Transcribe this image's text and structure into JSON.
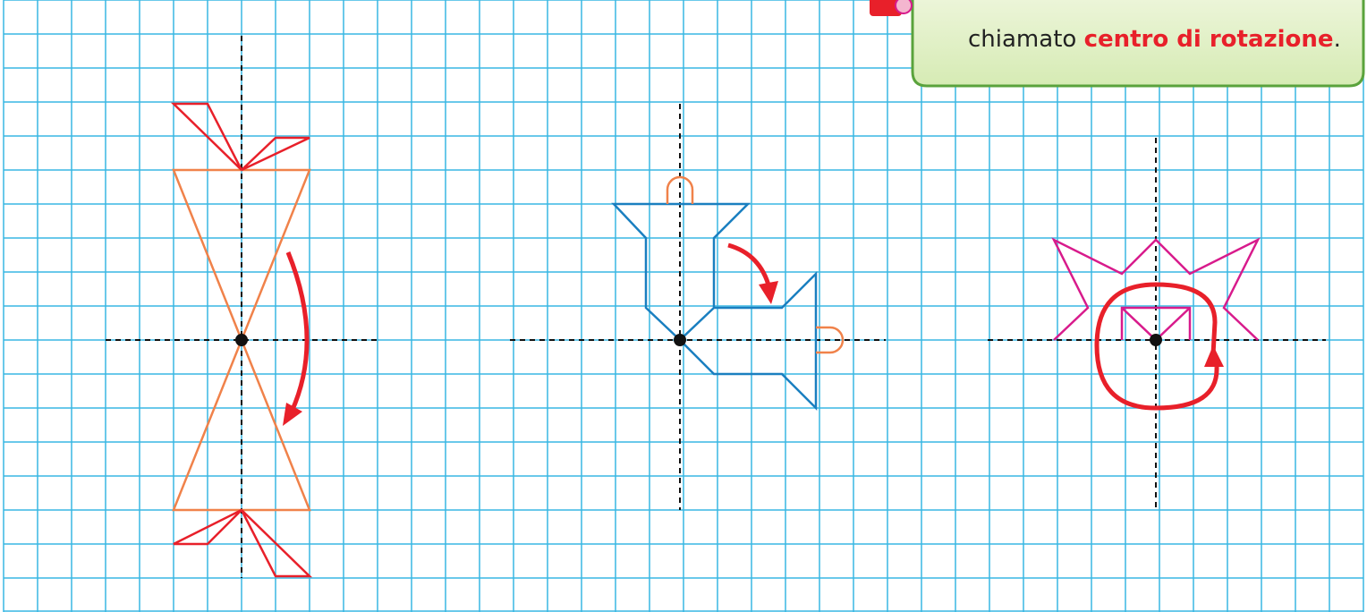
{
  "callout": {
    "text": "chiamato",
    "highlight": "centro di rotazione",
    "end": "."
  }
}
